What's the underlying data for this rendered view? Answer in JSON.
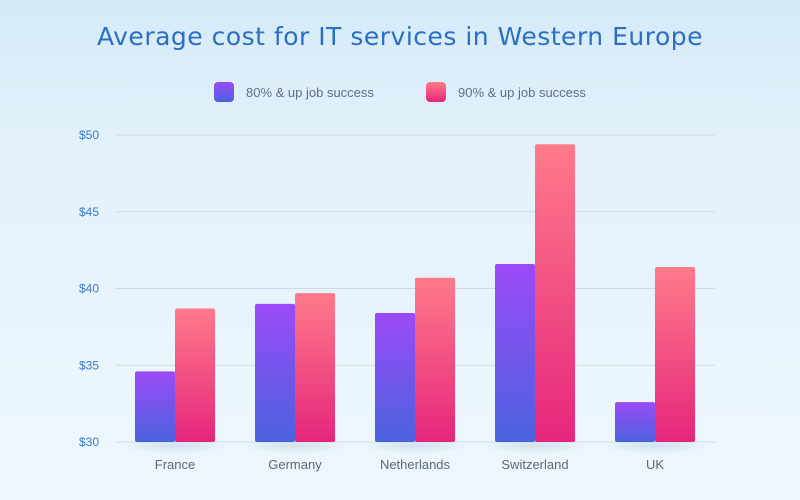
{
  "chart_data": {
    "type": "bar",
    "title": "Average cost for IT services in Western Europe",
    "xlabel": "",
    "ylabel": "",
    "categories": [
      "France",
      "Germany",
      "Netherlands",
      "Switzerland",
      "UK"
    ],
    "series": [
      {
        "name": "80% & up job success",
        "values": [
          34.6,
          39.0,
          38.4,
          41.6,
          32.6
        ]
      },
      {
        "name": "90% & up job success",
        "values": [
          38.7,
          39.7,
          40.7,
          49.4,
          41.4
        ]
      }
    ],
    "ylim": [
      30,
      50
    ],
    "yticks": [
      30,
      35,
      40,
      45,
      50
    ],
    "ytick_labels": [
      "$30",
      "$35",
      "$40",
      "$45",
      "$50"
    ],
    "grid": true,
    "legend_position": "top-center",
    "colors": {
      "series_0_top": "#9c4af7",
      "series_0_bottom": "#4a62de",
      "series_1_top": "#ff7a8a",
      "series_1_bottom": "#e5267c",
      "title": "#2a6fc1",
      "tick": "#3a7bc8",
      "grid": "#cfdbe5"
    }
  }
}
